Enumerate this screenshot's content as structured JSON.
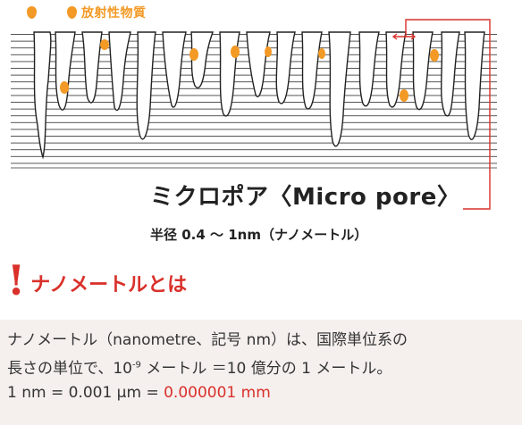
{
  "legend": {
    "label": "放射性物質"
  },
  "pore": {
    "title": "ミクロポア〈Micro pore〉",
    "radius": "半径 0.4 ～ 1nm（ナノメートル）"
  },
  "section": {
    "title": "ナノメートルとは"
  },
  "info": {
    "line1": "ナノメートル（nanometre、記号 nm）は、国際単位系の",
    "line2_a": "長さの単位で、10",
    "line2_exp": "-9",
    "line2_b": " メートル ＝10 億分の 1 メートル。",
    "line3_a": "1 nm = 0.001 μm = ",
    "line3_red": "0.000001 mm"
  },
  "colors": {
    "accent_red": "#d9302a",
    "orange": "#f39a26",
    "info_bg": "#f5f0ee"
  }
}
